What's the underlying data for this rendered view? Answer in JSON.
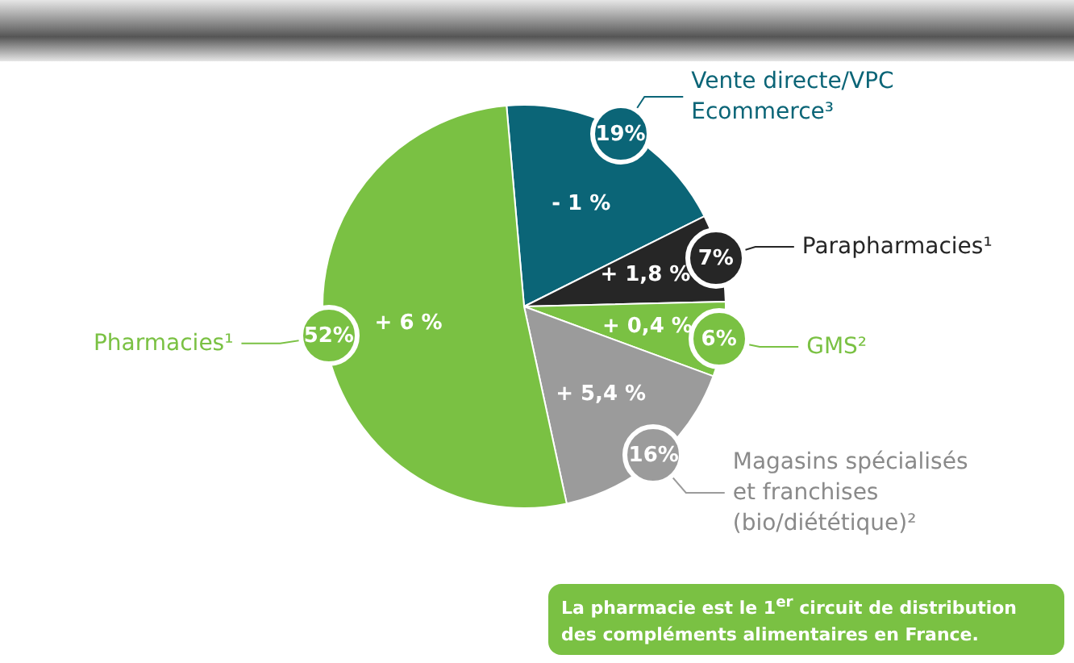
{
  "chart_data": {
    "type": "pie",
    "categories": [
      "Vente directe/VPC\nEcommerce³",
      "Parapharmacies¹",
      "GMS²",
      "Magasins spécialisés\net franchises\n(bio/diététique)²",
      "Pharmacies¹"
    ],
    "values": [
      19,
      7,
      6,
      16,
      52
    ],
    "value_labels": [
      "19%",
      "7%",
      "6%",
      "16%",
      "52%"
    ],
    "colors": [
      "#0b6577",
      "#262626",
      "#7ac143",
      "#9b9b9b",
      "#7ac143"
    ],
    "annotations": [
      "- 1 %",
      "+ 1,8 %",
      "+ 0,4 %",
      "+ 5,4 %",
      "+ 6 %",
      "La pharmacie est le 1$^{er}$ circuit de distribution des compléments alimentaires en France."
    ]
  }
}
